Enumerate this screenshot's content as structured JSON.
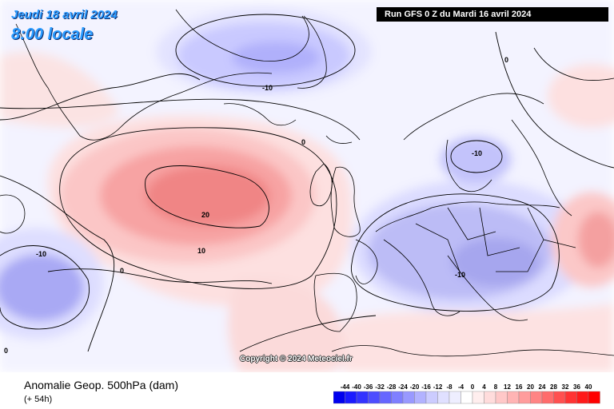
{
  "header": {
    "date": "Jeudi 18 avril 2024",
    "time": "8:00 locale",
    "run": "Run GFS 0 Z du Mardi 16 avril 2024"
  },
  "map": {
    "copyright": "Copyright © 2024 Meteociel.fr",
    "contour_labels": [
      {
        "id": "c1",
        "text": "-10"
      },
      {
        "id": "c2",
        "text": "0"
      },
      {
        "id": "c3",
        "text": "-10"
      },
      {
        "id": "c4",
        "text": "20"
      },
      {
        "id": "c5",
        "text": "10"
      },
      {
        "id": "c6",
        "text": "0"
      },
      {
        "id": "c7",
        "text": "-10"
      },
      {
        "id": "c8",
        "text": "-10"
      },
      {
        "id": "c9",
        "text": "0"
      },
      {
        "id": "c10",
        "text": "0"
      }
    ]
  },
  "footer": {
    "variable": "Anomalie Geop. 500hPa (dam)",
    "lead": "(+ 54h)"
  },
  "legend": {
    "ticks": [
      "-44",
      "-40",
      "-36",
      "-32",
      "-28",
      "-24",
      "-20",
      "-16",
      "-12",
      "-8",
      "-4",
      "0",
      "4",
      "8",
      "12",
      "16",
      "20",
      "24",
      "28",
      "32",
      "36",
      "40"
    ],
    "colors": [
      "#0000ee",
      "#1a1aff",
      "#3333ff",
      "#4d4dff",
      "#6666ff",
      "#7f7fff",
      "#9999ff",
      "#b2b2ff",
      "#ccccff",
      "#e0e0ff",
      "#eeeeff",
      "#ffffff",
      "#ffeeee",
      "#ffdcdc",
      "#ffc8c8",
      "#ffb4b4",
      "#ff9c9c",
      "#ff8484",
      "#ff6c6c",
      "#ff5050",
      "#ff3333",
      "#ff1a1a",
      "#ff0000"
    ]
  }
}
